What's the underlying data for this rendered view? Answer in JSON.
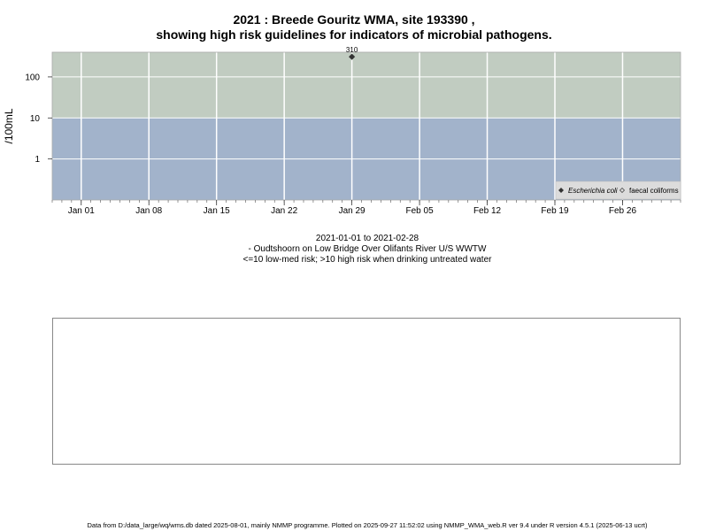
{
  "header": {
    "title_line1": "2021 : Breede Gouritz WMA, site 193390 ,",
    "title_line2": "showing high risk guidelines for indicators of microbial pathogens."
  },
  "chart_data": {
    "type": "scatter",
    "ylabel": "/100mL",
    "y_scale": "log",
    "y_ticks": [
      1,
      10,
      100
    ],
    "y_tick_labels": [
      "1",
      "10",
      "100"
    ],
    "ylim": [
      0.1,
      400
    ],
    "xlim": [
      "2020-12-29",
      "2021-03-04"
    ],
    "x_ticks": [
      "2021-01-01",
      "2021-01-08",
      "2021-01-15",
      "2021-01-22",
      "2021-01-29",
      "2021-02-05",
      "2021-02-12",
      "2021-02-19",
      "2021-02-26"
    ],
    "x_tick_labels": [
      "Jan 01",
      "Jan 08",
      "Jan 15",
      "Jan 22",
      "Jan 29",
      "Feb 05",
      "Feb 12",
      "Feb 19",
      "Feb 26"
    ],
    "guideline": 10,
    "bands": [
      {
        "from": 10,
        "to": 400,
        "color": "#c1ccc1"
      },
      {
        "from": 0.1,
        "to": 10,
        "color": "#a2b3cb"
      }
    ],
    "series": [
      {
        "name": "Escherichia coli",
        "marker": "filled-diamond",
        "color": "#333333",
        "points": [
          {
            "x": "2021-01-29",
            "y": 310,
            "label": "310"
          }
        ]
      },
      {
        "name": "faecal coliforms",
        "marker": "open-diamond",
        "color": "#333333",
        "points": []
      }
    ],
    "legend_position": "bottom-right",
    "grid": true
  },
  "caption": {
    "date_range": "2021-01-01 to 2021-02-28",
    "location": "- Oudtshoorn on Low Bridge Over Olifants River U/S WWTW",
    "risk_note": "<=10 low-med risk; >10 high risk when drinking untreated water"
  },
  "footer": {
    "text": "Data from D:/data_large/wq/wms.db dated 2025-08-01, mainly NMMP programme. Plotted on 2025-09-27 11:52:02 using NMMP_WMA_web.R ver 9.4 under R version 4.5.1 (2025-06-13 ucrt)"
  }
}
